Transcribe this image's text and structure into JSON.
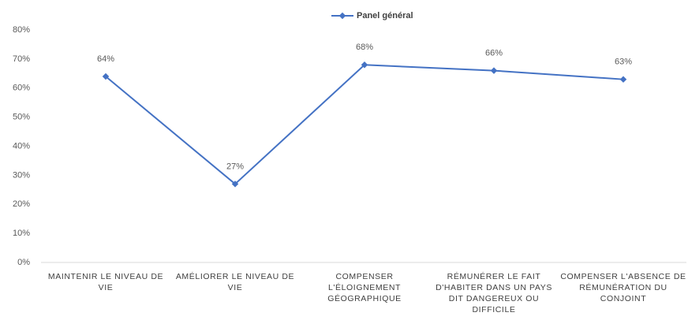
{
  "chart_data": {
    "type": "line",
    "categories": [
      "MAINTENIR LE NIVEAU DE VIE",
      "AMÉLIORER LE NIVEAU DE VIE",
      "COMPENSER L'ÉLOIGNEMENT GÉOGRAPHIQUE",
      "RÉMUNÉRER LE FAIT D'HABITER DANS UN PAYS DIT DANGEREUX OU DIFFICILE",
      "COMPENSER L'ABSENCE DE RÉMUNÉRATION DU CONJOINT"
    ],
    "series": [
      {
        "name": "Panel général",
        "color": "#4472c4",
        "values": [
          64,
          27,
          68,
          66,
          63
        ],
        "value_labels": [
          "64%",
          "27%",
          "68%",
          "66%",
          "63%"
        ]
      }
    ],
    "ylim": [
      0,
      80
    ],
    "yticks": [
      {
        "value": 0,
        "label": "0%"
      },
      {
        "value": 10,
        "label": "10%"
      },
      {
        "value": 20,
        "label": "20%"
      },
      {
        "value": 30,
        "label": "30%"
      },
      {
        "value": 40,
        "label": "40%"
      },
      {
        "value": 50,
        "label": "50%"
      },
      {
        "value": 60,
        "label": "60%"
      },
      {
        "value": 70,
        "label": "70%"
      },
      {
        "value": 80,
        "label": "80%"
      }
    ],
    "grid": false,
    "legend": "top"
  }
}
